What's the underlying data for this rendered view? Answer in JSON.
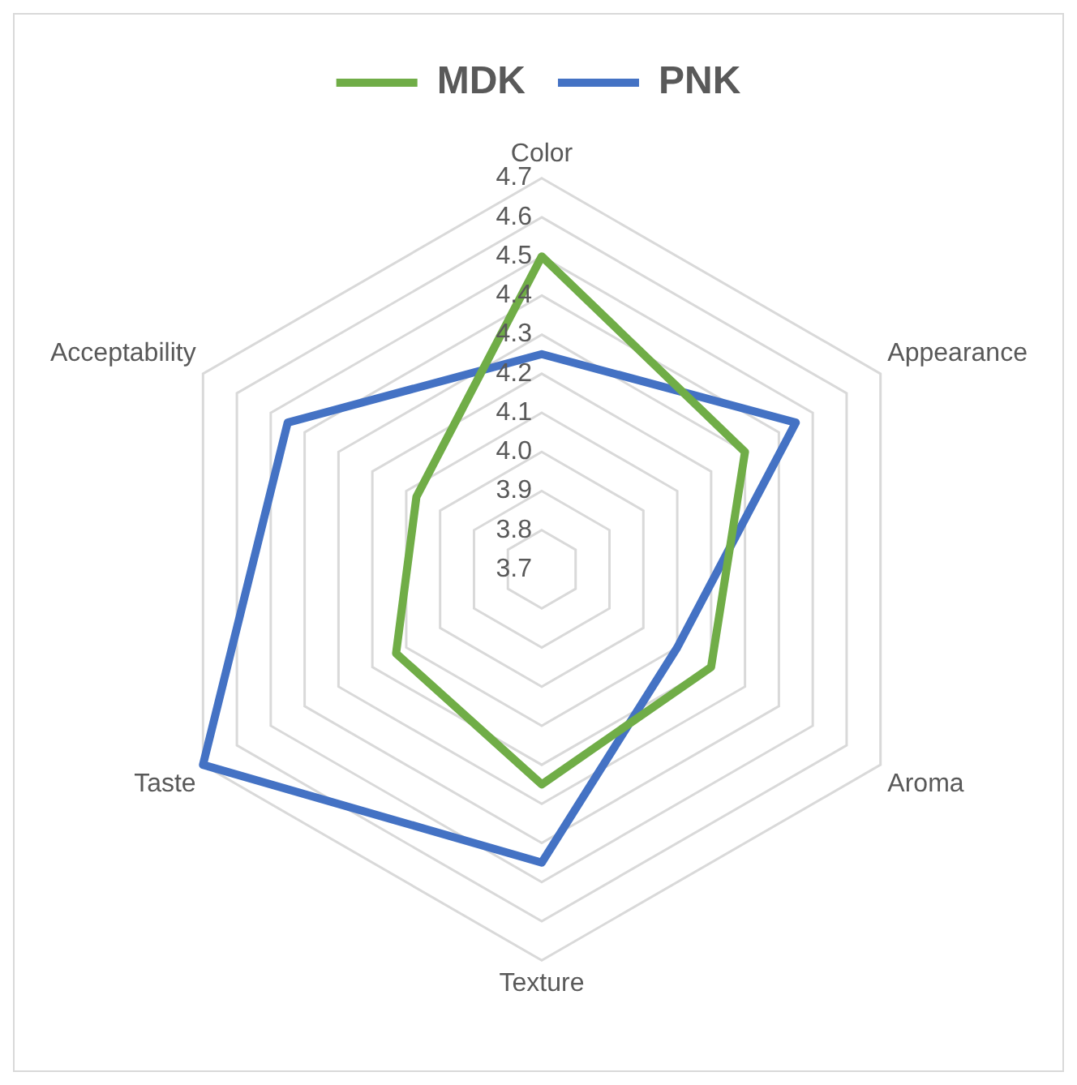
{
  "chart_data": {
    "type": "radar",
    "categories": [
      "Color",
      "Appearance",
      "Aroma",
      "Texture",
      "Taste",
      "Acceptability"
    ],
    "series": [
      {
        "name": "MDK",
        "color": "#70ad47",
        "values": [
          4.5,
          4.3,
          4.2,
          4.25,
          4.13,
          4.07
        ]
      },
      {
        "name": "PNK",
        "color": "#4472c4",
        "values": [
          4.25,
          4.45,
          4.1,
          4.45,
          4.7,
          4.45
        ]
      }
    ],
    "ylim": [
      3.7,
      4.7
    ],
    "yticks": [
      3.7,
      3.8,
      3.9,
      {
        "value": 4.0,
        "label": "4.0"
      },
      4.1,
      4.2,
      4.3,
      4.4,
      4.5,
      4.6,
      4.7
    ],
    "grid": true,
    "legend": "top",
    "marker": "none"
  }
}
